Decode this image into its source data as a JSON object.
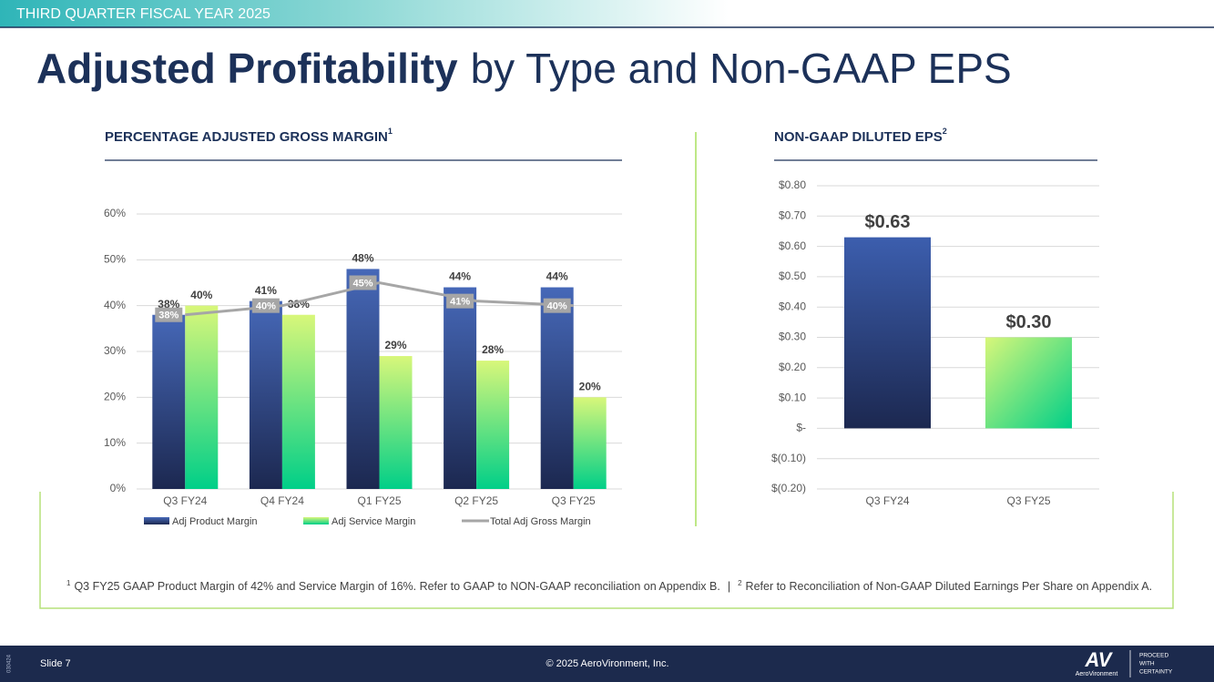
{
  "header": {
    "banner": "THIRD QUARTER FISCAL YEAR 2025",
    "title_bold": "Adjusted Profitability",
    "title_rest": "by Type and Non-GAAP EPS"
  },
  "chart_data": [
    {
      "type": "bar",
      "title": "PERCENTAGE ADJUSTED GROSS MARGIN",
      "title_sup": "1",
      "categories": [
        "Q3 FY24",
        "Q4 FY24",
        "Q1 FY25",
        "Q2 FY25",
        "Q3 FY25"
      ],
      "series": [
        {
          "name": "Adj Product Margin",
          "color": "#3a5aa8",
          "values": [
            38,
            41,
            48,
            44,
            44
          ],
          "value_labels": [
            "38%",
            "41%",
            "48%",
            "44%",
            "44%"
          ]
        },
        {
          "name": "Adj Service Margin",
          "color": "#4fe08a",
          "values": [
            40,
            38,
            29,
            28,
            20
          ],
          "value_labels": [
            "40%",
            "38%",
            "29%",
            "28%",
            "20%"
          ]
        },
        {
          "name": "Total Adj Gross Margin",
          "type": "line",
          "color": "#a6a6a6",
          "values": [
            38,
            40,
            45,
            41,
            40
          ],
          "value_labels": [
            "38%",
            "40%",
            "45%",
            "41%",
            "40%"
          ]
        }
      ],
      "ylim": [
        0,
        60
      ],
      "yticks": [
        {
          "value": 0,
          "label": "0%"
        },
        {
          "value": 10,
          "label": "10%"
        },
        {
          "value": 20,
          "label": "20%"
        },
        {
          "value": 30,
          "label": "30%"
        },
        {
          "value": 40,
          "label": "40%"
        },
        {
          "value": 50,
          "label": "50%"
        },
        {
          "value": 60,
          "label": "60%"
        }
      ],
      "grid": true,
      "legend": "bottom"
    },
    {
      "type": "bar",
      "title": "NON-GAAP DILUTED EPS",
      "title_sup": "2",
      "categories": [
        "Q3 FY24",
        "Q3 FY25"
      ],
      "values": [
        0.63,
        0.3
      ],
      "value_labels": [
        "$0.63",
        "$0.30"
      ],
      "colors": [
        "#2f4a8c",
        "#4fe08a"
      ],
      "ylim": [
        -0.2,
        0.8
      ],
      "yticks": [
        {
          "value": -0.2,
          "label": "$(0.20)"
        },
        {
          "value": -0.1,
          "label": "$(0.10)"
        },
        {
          "value": 0,
          "label": "$-"
        },
        {
          "value": 0.1,
          "label": "$0.10"
        },
        {
          "value": 0.2,
          "label": "$0.20"
        },
        {
          "value": 0.3,
          "label": "$0.30"
        },
        {
          "value": 0.4,
          "label": "$0.40"
        },
        {
          "value": 0.5,
          "label": "$0.50"
        },
        {
          "value": 0.6,
          "label": "$0.60"
        },
        {
          "value": 0.7,
          "label": "$0.70"
        },
        {
          "value": 0.8,
          "label": "$0.80"
        }
      ],
      "grid": true
    }
  ],
  "footnotes": [
    {
      "mark": "1",
      "text": "Q3 FY25 GAAP Product Margin of 42% and Service Margin of 16%. Refer to GAAP to NON-GAAP reconciliation on Appendix B."
    },
    {
      "mark": "2",
      "text": "Refer to Reconciliation of Non-GAAP Diluted Earnings Per Share on Appendix A."
    }
  ],
  "footnote_separator": "|",
  "footer": {
    "code": "030424",
    "slide": "Slide 7",
    "copyright": "© 2025 AeroVironment, Inc.",
    "logo": "AV",
    "brand": "AeroVironment",
    "tagline": [
      "PROCEED",
      "WITH",
      "CERTAINTY"
    ]
  }
}
